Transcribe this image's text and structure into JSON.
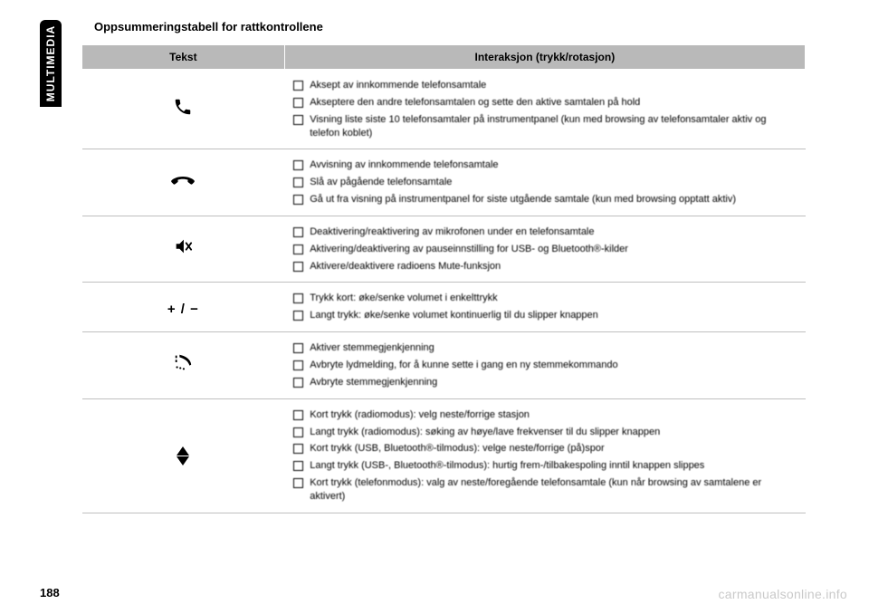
{
  "side_tab": "MULTIMEDIA",
  "page_number": "188",
  "watermark": "carmanualsonline.info",
  "title": "Oppsummeringstabell for rattkontrollene",
  "header": {
    "col1": "Tekst",
    "col2": "Interaksjon (trykk/rotasjon)"
  },
  "rows": [
    {
      "icon": "phone",
      "items": [
        "Aksept av innkommende telefonsamtale",
        "Akseptere den andre telefonsamtalen og sette den aktive samtalen på hold",
        "Visning liste siste 10 telefonsamtaler på instrumentpanel (kun med browsing av telefonsamtaler aktiv og telefon koblet)"
      ]
    },
    {
      "icon": "phone-end",
      "items": [
        "Avvisning av innkommende telefonsamtale",
        "Slå av pågående telefonsamtale",
        "Gå ut fra visning på instrumentpanel for siste utgående samtale (kun med browsing opptatt aktiv)"
      ]
    },
    {
      "icon": "mute",
      "items": [
        "Deaktivering/reaktivering av mikrofonen under en telefonsamtale",
        "Aktivering/deaktivering av pauseinnstilling for USB- og Bluetooth®-kilder",
        "Aktivere/deaktivere radioens Mute-funksjon"
      ]
    },
    {
      "icon": "plusminus",
      "items": [
        "Trykk kort: øke/senke volumet i enkelttrykk",
        "Langt trykk: øke/senke volumet kontinuerlig til du slipper knappen"
      ]
    },
    {
      "icon": "voice",
      "items": [
        "Aktiver stemmegjenkjenning",
        "Avbryte lydmelding, for å kunne sette i gang en ny stemmekommando",
        "Avbryte stemmegjenkjenning"
      ]
    },
    {
      "icon": "arrows",
      "items": [
        "Kort trykk (radiomodus): velg neste/forrige stasjon",
        "Langt trykk (radiomodus): søking av høye/lave frekvenser til du slipper knappen",
        "Kort trykk (USB, Bluetooth®-tilmodus): velge neste/forrige (på)spor",
        "Langt trykk (USB-, Bluetooth®-tilmodus): hurtig frem-/tilbakespoling inntil knappen slippes",
        "Kort trykk (telefonmodus): valg av neste/foregående telefonsamtale (kun når browsing av samtalene er aktivert)"
      ]
    }
  ],
  "style": {
    "header_bg": "#b9b9b9",
    "border_color": "#bfbfbf",
    "text_color": "#000000",
    "watermark_color": "#c9c9c9"
  }
}
